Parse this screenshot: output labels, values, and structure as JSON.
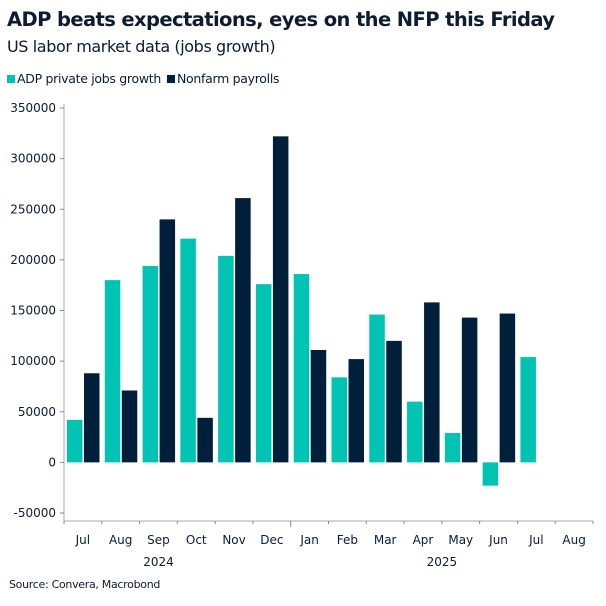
{
  "chart_data": {
    "type": "bar",
    "title": "ADP beats expectations, eyes on the NFP this Friday",
    "subtitle": "US labor market data (jobs growth)",
    "categories": [
      "Jul",
      "Aug",
      "Sep",
      "Oct",
      "Nov",
      "Dec",
      "Jan",
      "Feb",
      "Mar",
      "Apr",
      "May",
      "Jun",
      "Jul",
      "Aug"
    ],
    "year_labels": [
      {
        "label": "2024",
        "category_index": 2
      },
      {
        "label": "2025",
        "category_index": 9.5
      }
    ],
    "series": [
      {
        "name": "ADP private jobs growth",
        "color": "#00c4b3",
        "values": [
          42000,
          180000,
          194000,
          221000,
          204000,
          176000,
          186000,
          84000,
          146000,
          60000,
          29000,
          -23000,
          104000,
          null
        ]
      },
      {
        "name": "Nonfarm payrolls",
        "color": "#001f3a",
        "values": [
          88000,
          71000,
          240000,
          44000,
          261000,
          322000,
          111000,
          102000,
          120000,
          158000,
          143000,
          147000,
          null,
          null
        ]
      }
    ],
    "ylim": [
      -50000,
      350000
    ],
    "yticks": [
      -50000,
      0,
      50000,
      100000,
      150000,
      200000,
      250000,
      300000,
      350000
    ],
    "grid": false,
    "legend": "top-left",
    "source": "Source: Convera, Macrobond"
  }
}
